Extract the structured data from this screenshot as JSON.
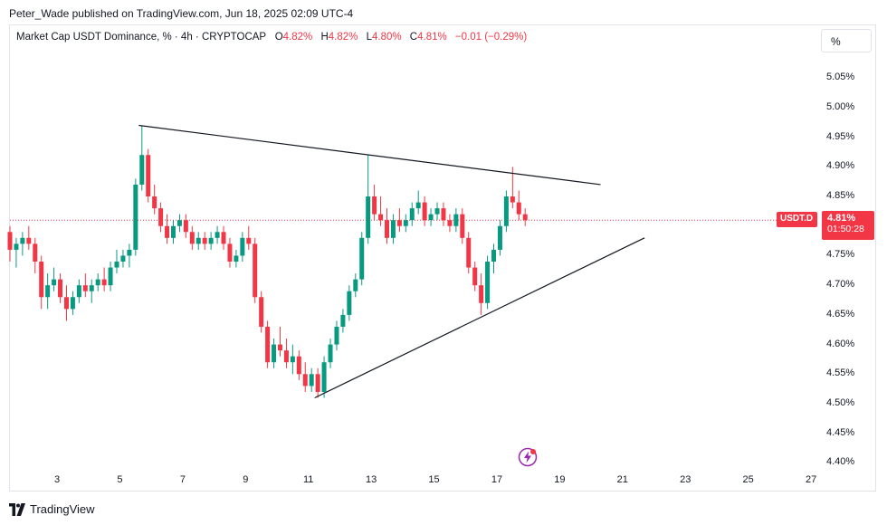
{
  "header": {
    "publisher": "Peter_Wade published on TradingView.com, Jun 18, 2025 02:09 UTC-4"
  },
  "legend": {
    "symbol": "Market Cap USDT Dominance, % · 4h · CRYPTOCAP",
    "o_label": "O",
    "o_value": "4.82%",
    "h_label": "H",
    "h_value": "4.82%",
    "l_label": "L",
    "l_value": "4.80%",
    "c_label": "C",
    "c_value": "4.81%",
    "change": "−0.01 (−0.29%)"
  },
  "scale_button": "%",
  "price_tag": {
    "symbol": "USDT.D",
    "price": "4.81%",
    "countdown": "01:50:28"
  },
  "footer": {
    "brand": "TradingView"
  },
  "icons": {
    "flash": "flash-icon",
    "logo": "tradingview-logo-icon"
  },
  "colors": {
    "up": "#089981",
    "down": "#f23645",
    "line": "#131722"
  },
  "chart_data": {
    "type": "candlestick",
    "y_ticks": [
      "5.05%",
      "5.00%",
      "4.95%",
      "4.90%",
      "4.85%",
      "4.80%",
      "4.75%",
      "4.70%",
      "4.65%",
      "4.60%",
      "4.55%",
      "4.50%",
      "4.45%",
      "4.40%"
    ],
    "x_ticks": [
      "3",
      "5",
      "7",
      "9",
      "11",
      "13",
      "15",
      "17",
      "19",
      "21",
      "23",
      "25",
      "27"
    ],
    "ylim": [
      4.39,
      5.09
    ],
    "xlim": [
      1.5,
      27.2
    ],
    "current_price": 4.81,
    "candles": [
      [
        1.5,
        4.79,
        4.8,
        4.74,
        4.76
      ],
      [
        1.7,
        4.76,
        4.78,
        4.73,
        4.77
      ],
      [
        1.9,
        4.77,
        4.79,
        4.75,
        4.78
      ],
      [
        2.1,
        4.78,
        4.8,
        4.76,
        4.77
      ],
      [
        2.3,
        4.77,
        4.78,
        4.72,
        4.74
      ],
      [
        2.5,
        4.74,
        4.75,
        4.66,
        4.68
      ],
      [
        2.7,
        4.68,
        4.72,
        4.66,
        4.7
      ],
      [
        2.9,
        4.7,
        4.73,
        4.69,
        4.71
      ],
      [
        3.1,
        4.71,
        4.72,
        4.67,
        4.68
      ],
      [
        3.3,
        4.68,
        4.7,
        4.64,
        4.66
      ],
      [
        3.5,
        4.66,
        4.69,
        4.65,
        4.68
      ],
      [
        3.7,
        4.68,
        4.71,
        4.67,
        4.7
      ],
      [
        3.9,
        4.7,
        4.72,
        4.68,
        4.69
      ],
      [
        4.1,
        4.69,
        4.71,
        4.67,
        4.7
      ],
      [
        4.3,
        4.7,
        4.72,
        4.69,
        4.71
      ],
      [
        4.5,
        4.71,
        4.73,
        4.69,
        4.7
      ],
      [
        4.7,
        4.7,
        4.74,
        4.69,
        4.73
      ],
      [
        4.9,
        4.73,
        4.76,
        4.72,
        4.74
      ],
      [
        5.1,
        4.74,
        4.76,
        4.73,
        4.75
      ],
      [
        5.3,
        4.75,
        4.77,
        4.73,
        4.76
      ],
      [
        5.5,
        4.76,
        4.88,
        4.75,
        4.87
      ],
      [
        5.7,
        4.87,
        4.97,
        4.86,
        4.92
      ],
      [
        5.9,
        4.92,
        4.93,
        4.84,
        4.85
      ],
      [
        6.1,
        4.85,
        4.87,
        4.82,
        4.83
      ],
      [
        6.3,
        4.83,
        4.84,
        4.79,
        4.8
      ],
      [
        6.5,
        4.8,
        4.82,
        4.77,
        4.78
      ],
      [
        6.7,
        4.78,
        4.81,
        4.77,
        4.8
      ],
      [
        6.9,
        4.8,
        4.82,
        4.79,
        4.81
      ],
      [
        7.1,
        4.81,
        4.82,
        4.78,
        4.79
      ],
      [
        7.3,
        4.79,
        4.8,
        4.76,
        4.77
      ],
      [
        7.5,
        4.77,
        4.79,
        4.76,
        4.78
      ],
      [
        7.7,
        4.78,
        4.79,
        4.76,
        4.77
      ],
      [
        7.9,
        4.77,
        4.79,
        4.76,
        4.78
      ],
      [
        8.1,
        4.78,
        4.8,
        4.77,
        4.79
      ],
      [
        8.3,
        4.79,
        4.8,
        4.76,
        4.77
      ],
      [
        8.5,
        4.77,
        4.78,
        4.73,
        4.74
      ],
      [
        8.7,
        4.74,
        4.76,
        4.73,
        4.75
      ],
      [
        8.9,
        4.75,
        4.79,
        4.74,
        4.78
      ],
      [
        9.1,
        4.78,
        4.8,
        4.76,
        4.77
      ],
      [
        9.3,
        4.77,
        4.78,
        4.67,
        4.68
      ],
      [
        9.5,
        4.68,
        4.69,
        4.62,
        4.63
      ],
      [
        9.7,
        4.63,
        4.64,
        4.56,
        4.57
      ],
      [
        9.9,
        4.57,
        4.61,
        4.56,
        4.6
      ],
      [
        10.1,
        4.6,
        4.63,
        4.58,
        4.59
      ],
      [
        10.3,
        4.59,
        4.61,
        4.56,
        4.57
      ],
      [
        10.5,
        4.57,
        4.6,
        4.55,
        4.58
      ],
      [
        10.7,
        4.58,
        4.59,
        4.54,
        4.55
      ],
      [
        10.9,
        4.55,
        4.57,
        4.52,
        4.53
      ],
      [
        11.1,
        4.53,
        4.56,
        4.52,
        4.55
      ],
      [
        11.3,
        4.55,
        4.56,
        4.51,
        4.52
      ],
      [
        11.5,
        4.52,
        4.58,
        4.51,
        4.57
      ],
      [
        11.7,
        4.57,
        4.61,
        4.56,
        4.6
      ],
      [
        11.9,
        4.6,
        4.64,
        4.59,
        4.63
      ],
      [
        12.1,
        4.63,
        4.66,
        4.62,
        4.65
      ],
      [
        12.3,
        4.65,
        4.7,
        4.64,
        4.69
      ],
      [
        12.5,
        4.69,
        4.72,
        4.68,
        4.71
      ],
      [
        12.7,
        4.71,
        4.79,
        4.7,
        4.78
      ],
      [
        12.9,
        4.78,
        4.92,
        4.77,
        4.85
      ],
      [
        13.1,
        4.85,
        4.87,
        4.81,
        4.82
      ],
      [
        13.3,
        4.82,
        4.85,
        4.8,
        4.81
      ],
      [
        13.5,
        4.81,
        4.83,
        4.77,
        4.78
      ],
      [
        13.7,
        4.78,
        4.82,
        4.77,
        4.81
      ],
      [
        13.9,
        4.81,
        4.83,
        4.79,
        4.8
      ],
      [
        14.1,
        4.8,
        4.82,
        4.79,
        4.81
      ],
      [
        14.3,
        4.81,
        4.84,
        4.8,
        4.83
      ],
      [
        14.5,
        4.83,
        4.86,
        4.82,
        4.84
      ],
      [
        14.7,
        4.84,
        4.85,
        4.8,
        4.81
      ],
      [
        14.9,
        4.81,
        4.83,
        4.8,
        4.82
      ],
      [
        15.1,
        4.82,
        4.84,
        4.81,
        4.83
      ],
      [
        15.3,
        4.83,
        4.84,
        4.8,
        4.81
      ],
      [
        15.5,
        4.81,
        4.82,
        4.79,
        4.8
      ],
      [
        15.7,
        4.8,
        4.83,
        4.79,
        4.82
      ],
      [
        15.9,
        4.82,
        4.83,
        4.77,
        4.78
      ],
      [
        16.1,
        4.78,
        4.79,
        4.72,
        4.73
      ],
      [
        16.3,
        4.73,
        4.74,
        4.69,
        4.7
      ],
      [
        16.5,
        4.7,
        4.72,
        4.65,
        4.67
      ],
      [
        16.7,
        4.67,
        4.75,
        4.66,
        4.74
      ],
      [
        16.9,
        4.74,
        4.77,
        4.72,
        4.76
      ],
      [
        17.1,
        4.76,
        4.81,
        4.75,
        4.8
      ],
      [
        17.3,
        4.8,
        4.86,
        4.79,
        4.85
      ],
      [
        17.5,
        4.85,
        4.9,
        4.83,
        4.84
      ],
      [
        17.7,
        4.84,
        4.86,
        4.81,
        4.82
      ],
      [
        17.9,
        4.82,
        4.83,
        4.8,
        4.81
      ]
    ],
    "annotations": [
      {
        "type": "trendline",
        "from": [
          5.6,
          4.97
        ],
        "to": [
          20.3,
          4.87
        ]
      },
      {
        "type": "trendline",
        "from": [
          11.2,
          4.51
        ],
        "to": [
          21.7,
          4.78
        ]
      }
    ]
  }
}
